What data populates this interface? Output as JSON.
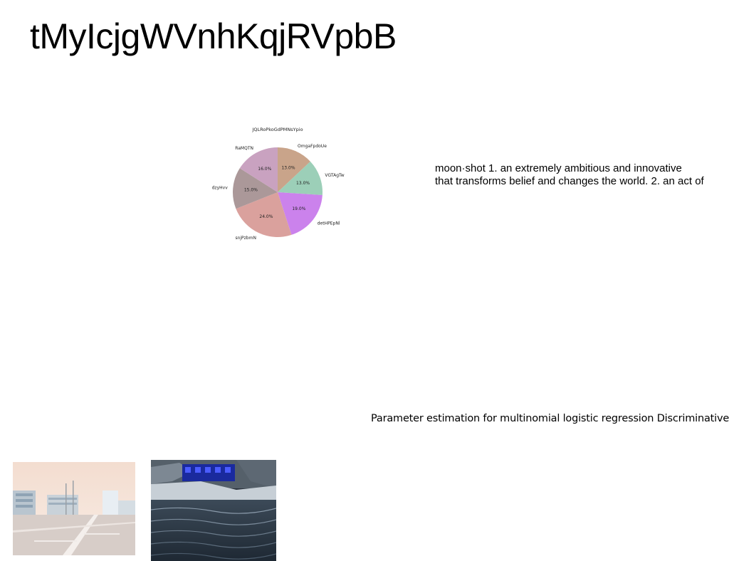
{
  "page": {
    "title": "tMyIcjgWVnhKqjRVpbB",
    "definition_lines": [
      "moon·shot 1. an extremely ambitious and innovative",
      "that transforms belief and changes the world. 2. an act of"
    ],
    "caption": "Parameter estimation for multinomial logistic regression Discriminative"
  },
  "chart_data": {
    "type": "pie",
    "title": "JQLRoPkoGdPMNsYpio",
    "start_angle_deg": 90,
    "direction": "clockwise",
    "slices": [
      {
        "label": "OmgaFpdoUe",
        "value": 13.0,
        "pct_label": "13.0%",
        "color": "#c9a48a"
      },
      {
        "label": "VGTAgTw",
        "value": 13.0,
        "pct_label": "13.0%",
        "color": "#9ccfb8"
      },
      {
        "label": "detHPEpNl",
        "value": 19.0,
        "pct_label": "19.0%",
        "color": "#cb82ec"
      },
      {
        "label": "snjPzbmN",
        "value": 24.0,
        "pct_label": "24.0%",
        "color": "#daa19d"
      },
      {
        "label": "dzyHvv",
        "value": 15.0,
        "pct_label": "15.0%",
        "color": "#ab9899"
      },
      {
        "label": "RaMQTN",
        "value": 16.0,
        "pct_label": "16.0%",
        "color": "#c9a2c0"
      }
    ]
  },
  "photos": [
    {
      "subject": "parking-lot-buildings-photo"
    },
    {
      "subject": "lake-cabin-photo"
    }
  ]
}
